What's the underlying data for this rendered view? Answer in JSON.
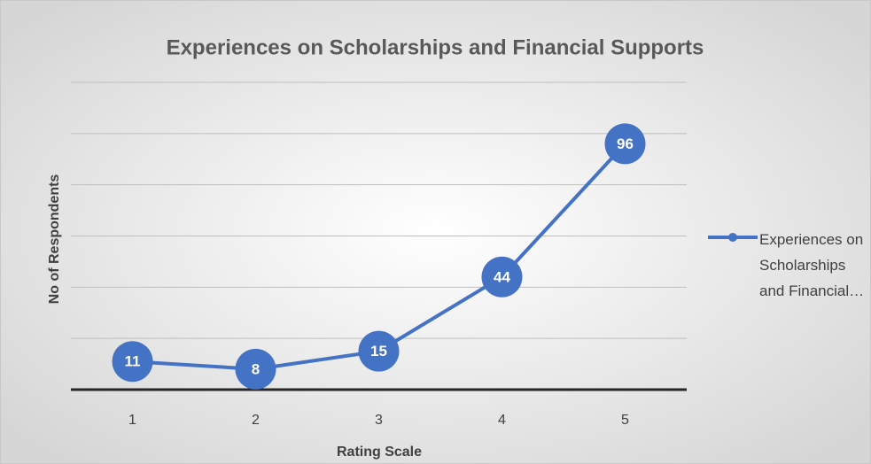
{
  "chart_data": {
    "type": "line",
    "title": "Experiences on Scholarships and Financial Supports",
    "x_label": "Rating Scale",
    "y_label": "No of Respondents",
    "categories": [
      "1",
      "2",
      "3",
      "4",
      "5"
    ],
    "series": [
      {
        "name": "Experiences on Scholarships and Financial…",
        "color": "#4472c4",
        "values": [
          11,
          8,
          15,
          44,
          96
        ]
      }
    ],
    "ylim": [
      0,
      120
    ],
    "yticks": [
      0,
      20,
      40,
      60,
      80,
      100,
      120
    ],
    "grid": true,
    "legend": "right"
  }
}
